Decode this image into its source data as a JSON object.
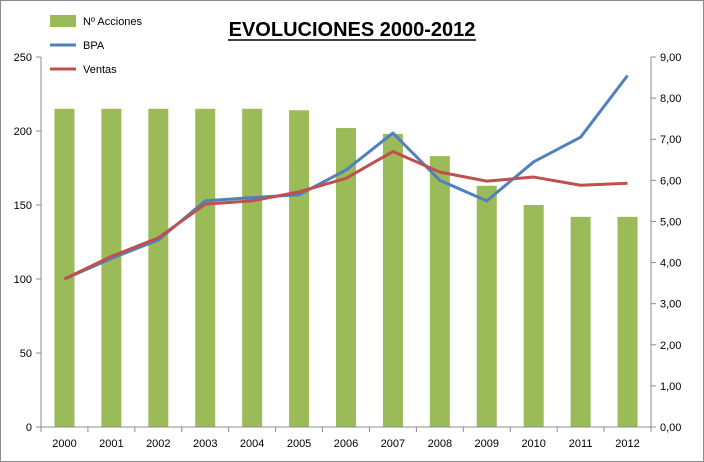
{
  "chart_data": {
    "type": "bar+line",
    "title": "EVOLUCIONES 2000-2012",
    "categories": [
      "2000",
      "2001",
      "2002",
      "2003",
      "2004",
      "2005",
      "2006",
      "2007",
      "2008",
      "2009",
      "2010",
      "2011",
      "2012"
    ],
    "series": [
      {
        "name": "Nº Acciones",
        "type": "bar",
        "axis": "left",
        "color": "#9bbb59",
        "values": [
          215,
          215,
          215,
          215,
          215,
          214,
          202,
          198,
          183,
          163,
          150,
          142,
          142
        ]
      },
      {
        "name": "BPA",
        "type": "line",
        "axis": "right",
        "color": "#4f81bd",
        "values": [
          3.6,
          4.1,
          4.55,
          5.5,
          5.58,
          5.65,
          6.25,
          7.15,
          6.0,
          5.5,
          6.45,
          7.05,
          8.55
        ]
      },
      {
        "name": "Ventas",
        "type": "line",
        "axis": "right",
        "color": "#c0504d",
        "values": [
          3.6,
          4.15,
          4.6,
          5.42,
          5.5,
          5.72,
          6.05,
          6.7,
          6.2,
          5.98,
          6.08,
          5.88,
          5.93
        ]
      }
    ],
    "left_axis": {
      "ylim": [
        0,
        250
      ],
      "ticks": [
        "0",
        "50",
        "100",
        "150",
        "200",
        "250"
      ]
    },
    "right_axis": {
      "ylim": [
        0,
        9
      ],
      "ticks": [
        "0,00",
        "1,00",
        "2,00",
        "3,00",
        "4,00",
        "5,00",
        "6,00",
        "7,00",
        "8,00",
        "9,00"
      ]
    },
    "legend_position": "top-left",
    "grid": false
  }
}
